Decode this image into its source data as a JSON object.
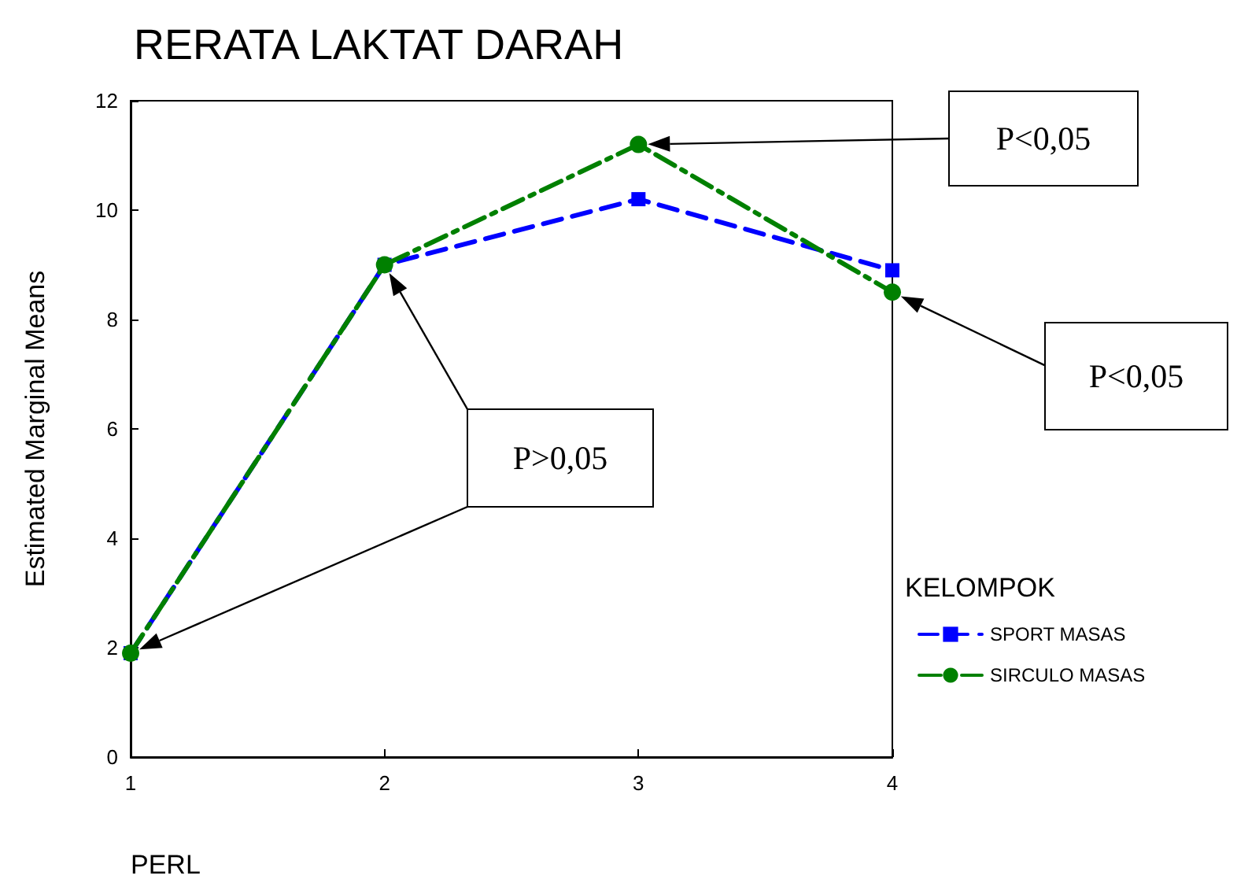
{
  "chart_data": {
    "type": "line",
    "title": "RERATA LAKTAT DARAH",
    "xlabel": "PERL",
    "ylabel": "Estimated Marginal Means",
    "legend_title": "KELOMPOK",
    "x": [
      1,
      2,
      3,
      4
    ],
    "xlim": [
      1,
      4
    ],
    "xticks": [
      1,
      2,
      3,
      4
    ],
    "ylim": [
      0,
      12
    ],
    "yticks": [
      0,
      2,
      4,
      6,
      8,
      10,
      12
    ],
    "series": [
      {
        "name": "SPORT MASAS",
        "color": "#0000ff",
        "values": [
          1.9,
          9.0,
          10.2,
          8.9
        ],
        "marker": "square",
        "line_style": "dashed"
      },
      {
        "name": "SIRCULO MASAS",
        "color": "#008000",
        "values": [
          1.9,
          9.0,
          11.2,
          8.5
        ],
        "marker": "circle",
        "line_style": "dashed"
      }
    ],
    "annotations": [
      "P>0,05",
      "P<0,05",
      "P<0,05"
    ],
    "grid": false,
    "legend": "right"
  }
}
